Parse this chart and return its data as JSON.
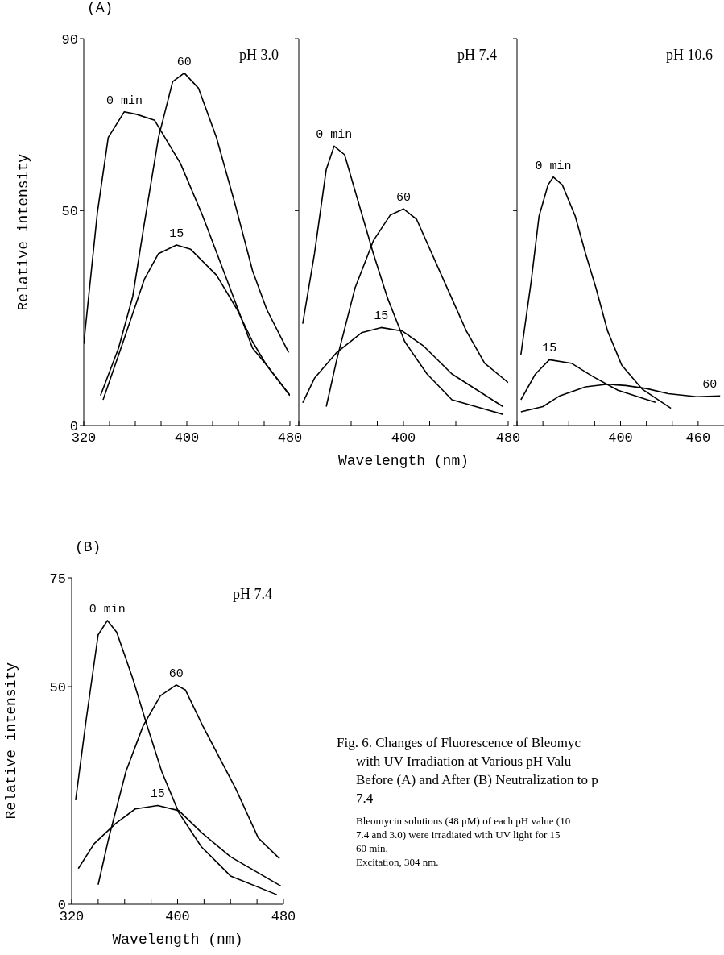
{
  "chart_data": [
    {
      "type": "line",
      "title": "(A)",
      "ylabel": "Relative intensity",
      "annotations": [
        "pH 3.0"
      ],
      "xlim": [
        320,
        480
      ],
      "xticks": [
        320,
        {
          "value": 340,
          "label": null
        },
        {
          "value": 360,
          "label": null
        },
        {
          "value": 380,
          "label": null
        },
        400,
        {
          "value": 420,
          "label": null
        },
        {
          "value": 440,
          "label": null
        },
        {
          "value": 460,
          "label": null
        },
        480
      ],
      "ylim": [
        0,
        90
      ],
      "yticks": [
        0,
        50,
        90
      ],
      "marker": "none",
      "line_style": "solid",
      "series": [
        {
          "name": "0 min",
          "color": "#000000",
          "x": [
            320,
            330.6,
            339,
            351.5,
            361,
            375,
            395,
            412,
            431,
            451,
            462,
            480
          ],
          "values": [
            19,
            49.6,
            67,
            73,
            72.4,
            71,
            61,
            49,
            34,
            18,
            14,
            7
          ]
        },
        {
          "name": "60",
          "color": "#000000",
          "x": [
            333,
            347,
            358,
            367,
            378,
            389,
            398,
            409,
            423,
            437,
            451,
            462,
            479
          ],
          "values": [
            7,
            18,
            30,
            47,
            67,
            80,
            82,
            78.5,
            67,
            52,
            36,
            27,
            17
          ]
        },
        {
          "name": "15",
          "color": "#000000",
          "x": [
            335,
            350,
            367,
            378,
            392,
            403,
            423,
            439,
            451,
            462,
            480
          ],
          "values": [
            6,
            19,
            34,
            40,
            42,
            41,
            35,
            27,
            19.5,
            14,
            7
          ]
        }
      ]
    },
    {
      "type": "line",
      "xlabel": "Wavelength (nm)",
      "annotations": [
        "pH 7.4"
      ],
      "xlim": [
        320,
        480
      ],
      "xticks": [
        {
          "value": 320,
          "label": null
        },
        {
          "value": 340,
          "label": null
        },
        {
          "value": 360,
          "label": null
        },
        {
          "value": 380,
          "label": null
        },
        400,
        {
          "value": 420,
          "label": null
        },
        {
          "value": 440,
          "label": null
        },
        {
          "value": 460,
          "label": null
        },
        480
      ],
      "ylim": [
        0,
        90
      ],
      "yticks": [
        {
          "value": 0,
          "label": null
        },
        {
          "value": 50,
          "label": null
        },
        {
          "value": 90,
          "label": null
        }
      ],
      "tick_labels": "x",
      "marker": "none",
      "line_style": "solid",
      "series": [
        {
          "name": "0 min",
          "color": "#000000",
          "x": [
            323,
            332,
            341,
            347,
            355,
            363,
            377,
            388,
            401,
            418,
            437,
            476
          ],
          "values": [
            23.7,
            40,
            59.6,
            65,
            63,
            54.6,
            40,
            29.5,
            19.5,
            12,
            6,
            2.6
          ]
        },
        {
          "name": "60",
          "color": "#000000",
          "x": [
            341,
            349,
            363,
            377,
            390,
            400,
            410,
            429,
            448,
            462,
            480
          ],
          "values": [
            4.4,
            15.3,
            32,
            43,
            49,
            50.4,
            48,
            35,
            22,
            14.5,
            10
          ]
        },
        {
          "name": "15",
          "color": "#000000",
          "x": [
            323,
            332,
            349,
            368,
            383,
            399,
            415,
            437,
            476
          ],
          "values": [
            5.3,
            11,
            17,
            21.6,
            22.8,
            22,
            18.6,
            12,
            4.4
          ]
        }
      ]
    },
    {
      "type": "line",
      "annotations": [
        "pH 10.6"
      ],
      "xlim": [
        320,
        480
      ],
      "xticks": [
        {
          "value": 320,
          "label": null
        },
        {
          "value": 340,
          "label": null
        },
        {
          "value": 360,
          "label": null
        },
        {
          "value": 380,
          "label": null
        },
        400,
        {
          "value": 420,
          "label": null
        },
        {
          "value": 440,
          "label": null
        },
        460
      ],
      "ylim": [
        0,
        90
      ],
      "yticks": [
        {
          "value": 0,
          "label": null
        },
        {
          "value": 50,
          "label": null
        },
        {
          "value": 90,
          "label": null
        }
      ],
      "tick_labels": "x",
      "marker": "none",
      "line_style": "solid",
      "series": [
        {
          "name": "0 min",
          "color": "#000000",
          "x": [
            323,
            331,
            337,
            344,
            348,
            355,
            365,
            373,
            381,
            390,
            401,
            417,
            439
          ],
          "values": [
            16.5,
            33.7,
            48.7,
            56,
            57.8,
            56,
            48.7,
            40,
            32,
            22,
            14,
            8.4,
            4
          ]
        },
        {
          "name": "15",
          "color": "#000000",
          "x": [
            323,
            334,
            345,
            362,
            378,
            398,
            427
          ],
          "values": [
            6,
            11.9,
            15.3,
            14.5,
            11.5,
            8.2,
            5.4
          ]
        },
        {
          "name": "60",
          "color": "#000000",
          "x": [
            323,
            340,
            353,
            373,
            390,
            404,
            420,
            437,
            459,
            477
          ],
          "values": [
            3.2,
            4.4,
            6.9,
            9,
            9.6,
            9.3,
            8.6,
            7.4,
            6.7,
            6.9
          ]
        }
      ]
    },
    {
      "type": "line",
      "title": "(B)",
      "xlabel": "Wavelength (nm)",
      "ylabel": "Relative intensity",
      "annotations": [
        "pH 7.4",
        "Fig. 6.  Changes of Fluorescence of Bleomyc",
        "with UV Irradiation at Various pH Valu",
        "Before (A) and After (B) Neutralization to p",
        "7.4",
        "Bleomycin solutions (48 μM) of each pH value (10",
        "7.4 and 3.0) were irradiated with UV light for 15",
        "60 min.",
        "Excitation, 304 nm."
      ],
      "xlim": [
        320,
        480
      ],
      "xticks": [
        320,
        {
          "value": 340,
          "label": null
        },
        {
          "value": 360,
          "label": null
        },
        {
          "value": 380,
          "label": null
        },
        400,
        {
          "value": 420,
          "label": null
        },
        {
          "value": 440,
          "label": null
        },
        {
          "value": 460,
          "label": null
        },
        480
      ],
      "ylim": [
        0,
        75
      ],
      "yticks": [
        0,
        50,
        75
      ],
      "marker": "none",
      "line_style": "solid",
      "series": [
        {
          "name": "0 min",
          "color": "#000000",
          "x": [
            323,
            331,
            340,
            347,
            354,
            366,
            377,
            388,
            401,
            418,
            440,
            475
          ],
          "values": [
            23.9,
            42.5,
            61.9,
            65.2,
            62.5,
            52,
            41,
            30.5,
            21,
            13.2,
            6.5,
            2.2
          ]
        },
        {
          "name": "60",
          "color": "#000000",
          "x": [
            340,
            348,
            361,
            374,
            387,
            399,
            406,
            419,
            444,
            461,
            477
          ],
          "values": [
            4.5,
            15.2,
            30.5,
            41,
            47.9,
            50.4,
            49.2,
            41,
            26.5,
            15.2,
            10.5
          ]
        },
        {
          "name": "15",
          "color": "#000000",
          "x": [
            325,
            337,
            353,
            368,
            385,
            401,
            418,
            440,
            478
          ],
          "values": [
            8.2,
            13.9,
            18.5,
            21.9,
            22.7,
            21.5,
            16.5,
            10.9,
            4.2
          ]
        }
      ]
    }
  ]
}
